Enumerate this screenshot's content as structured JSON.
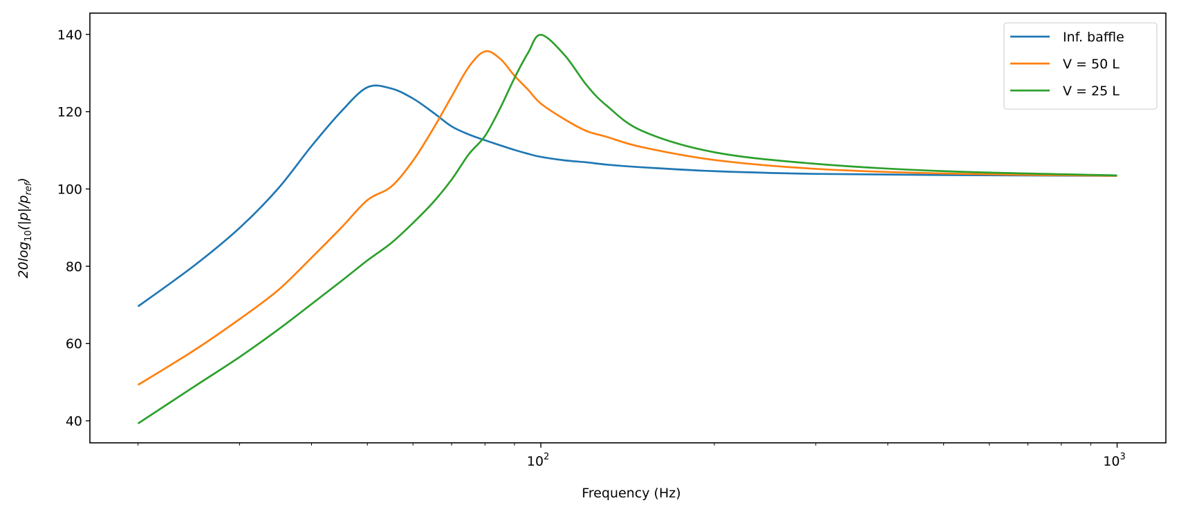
{
  "chart_data": {
    "type": "line",
    "title": "",
    "xlabel": "Frequency (Hz)",
    "ylabel": {
      "base": "20log",
      "sub": "10",
      "mid": "(|p|/p",
      "sub2": "ref",
      "end": ")"
    },
    "xscale": "log",
    "xlim": [
      16.5,
      1215
    ],
    "ylim": [
      34.3,
      145.5
    ],
    "grid": false,
    "legend_position": "top-right",
    "yticks": [
      40,
      60,
      80,
      100,
      120,
      140
    ],
    "ytick_labels": [
      "40",
      "60",
      "80",
      "100",
      "120",
      "140"
    ],
    "xticks_major": [
      100,
      1000
    ],
    "xtick_labels": [
      {
        "base": "10",
        "exp": "2"
      },
      {
        "base": "10",
        "exp": "3"
      }
    ],
    "xticks_minor": [
      20,
      30,
      40,
      50,
      60,
      70,
      80,
      90,
      200,
      300,
      400,
      500,
      600,
      700,
      800,
      900
    ],
    "x": [
      20,
      25,
      30,
      35,
      40,
      45,
      50,
      55,
      60,
      65,
      70,
      75,
      80,
      85,
      90,
      95,
      100,
      110,
      120,
      130,
      150,
      200,
      300,
      500,
      1000
    ],
    "series": [
      {
        "name": "Inf. baffle",
        "color": "#1f77b4",
        "values": [
          69.6,
          80.1,
          89.9,
          100.1,
          111.1,
          120.0,
          126.3,
          126.0,
          123.4,
          119.8,
          116.2,
          114.1,
          112.6,
          111.3,
          110.1,
          109.1,
          108.3,
          107.4,
          106.9,
          106.3,
          105.6,
          104.6,
          103.9,
          103.6,
          103.4
        ]
      },
      {
        "name": "V = 50 L",
        "color": "#ff7f0e",
        "values": [
          49.3,
          58.2,
          66.3,
          73.8,
          82.2,
          89.9,
          97.1,
          100.6,
          107.3,
          115.5,
          123.9,
          131.6,
          135.6,
          133.7,
          129.3,
          125.7,
          122.1,
          118.0,
          115.0,
          113.5,
          110.8,
          107.5,
          105.2,
          104.0,
          103.4
        ]
      },
      {
        "name": "V = 25 L",
        "color": "#2ca02c",
        "values": [
          39.3,
          48.8,
          56.5,
          63.6,
          70.2,
          76.1,
          81.5,
          86.0,
          91.2,
          96.5,
          102.4,
          109.0,
          113.7,
          120.9,
          128.7,
          135.2,
          139.9,
          134.6,
          126.9,
          121.6,
          115.0,
          109.5,
          106.5,
          104.6,
          103.5
        ]
      }
    ]
  }
}
